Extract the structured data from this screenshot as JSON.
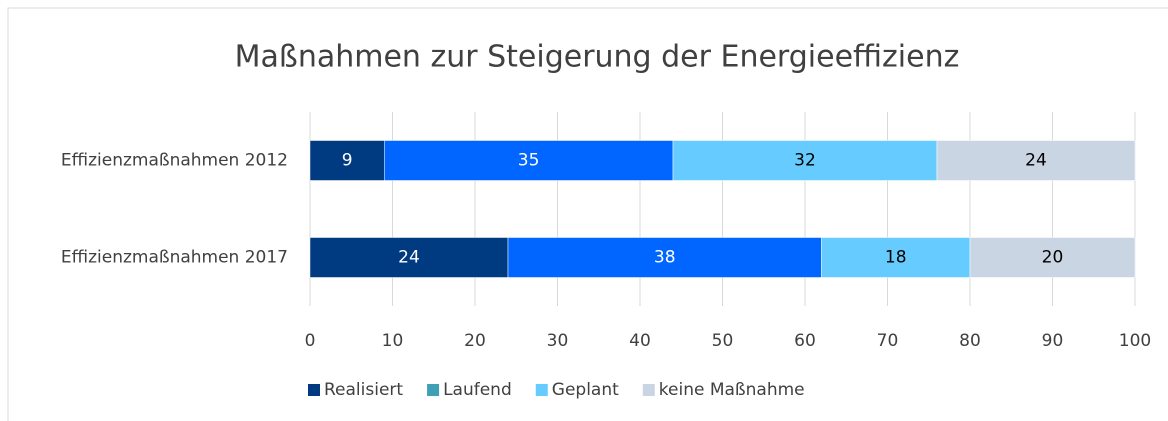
{
  "chart_data": {
    "type": "stacked_barh",
    "title": "Maßnahmen zur Steigerung der Energieeffizienz",
    "categories": [
      "Effizienzmaßnahmen 2012",
      "Effizienzmaßnahmen 2017"
    ],
    "series": [
      {
        "name": "Realisiert",
        "color": "#003a80",
        "values": [
          9,
          24
        ]
      },
      {
        "name": "Laufend",
        "color": "#0066ff",
        "legend_color": "#3f9fb5",
        "values": [
          35,
          38
        ]
      },
      {
        "name": "Geplant",
        "color": "#66ccff",
        "values": [
          32,
          18
        ]
      },
      {
        "name": "keine Maßnahme",
        "color": "#cad5e3",
        "values": [
          24,
          20
        ]
      }
    ],
    "xlim": [
      0,
      100
    ],
    "xticks": [
      0,
      10,
      20,
      30,
      40,
      50,
      60,
      70,
      80,
      90,
      100
    ],
    "grid": true,
    "legend": "bottom"
  }
}
